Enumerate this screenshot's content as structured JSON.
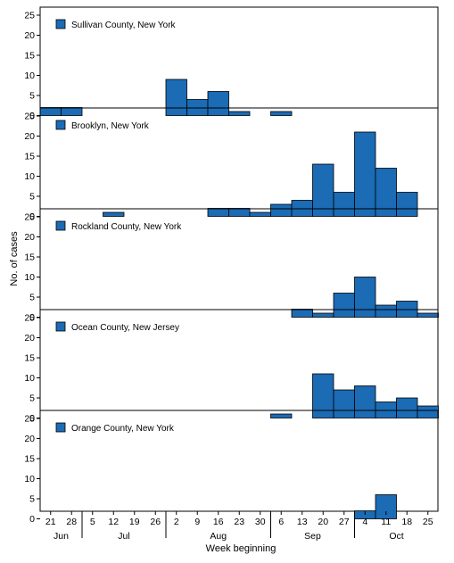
{
  "chart_data": {
    "type": "bar",
    "ylabel": "No. of cases",
    "xlabel": "Week beginning",
    "yticks": [
      0,
      5,
      10,
      15,
      20,
      25
    ],
    "ylim": [
      0,
      25
    ],
    "x_week_labels": [
      "21",
      "28",
      "5",
      "12",
      "19",
      "26",
      "2",
      "9",
      "16",
      "23",
      "30",
      "6",
      "13",
      "20",
      "27",
      "4",
      "11",
      "18",
      "25"
    ],
    "months": [
      "Jun",
      "Jul",
      "Aug",
      "Sep",
      "Oct"
    ],
    "bar_color": "#1b6bb5",
    "panels": [
      {
        "name": "Sullivan County, New York",
        "values": [
          2,
          2,
          0,
          0,
          0,
          0,
          9,
          4,
          6,
          1,
          0,
          1,
          0,
          0,
          0,
          0,
          0,
          0,
          0
        ]
      },
      {
        "name": "Brooklyn, New York",
        "values": [
          0,
          0,
          0,
          1,
          0,
          0,
          0,
          0,
          2,
          2,
          1,
          3,
          4,
          13,
          6,
          21,
          12,
          6,
          0
        ]
      },
      {
        "name": "Rockland County, New York",
        "values": [
          0,
          0,
          0,
          0,
          0,
          0,
          0,
          0,
          0,
          0,
          0,
          0,
          2,
          1,
          6,
          10,
          3,
          4,
          1
        ]
      },
      {
        "name": "Ocean County, New Jersey",
        "values": [
          0,
          0,
          0,
          0,
          0,
          0,
          0,
          0,
          0,
          0,
          0,
          1,
          0,
          11,
          7,
          8,
          4,
          5,
          3
        ]
      },
      {
        "name": "Orange County, New York",
        "values": [
          0,
          0,
          0,
          0,
          0,
          0,
          0,
          0,
          0,
          0,
          0,
          0,
          0,
          0,
          0,
          2,
          6,
          0,
          0
        ]
      }
    ]
  }
}
